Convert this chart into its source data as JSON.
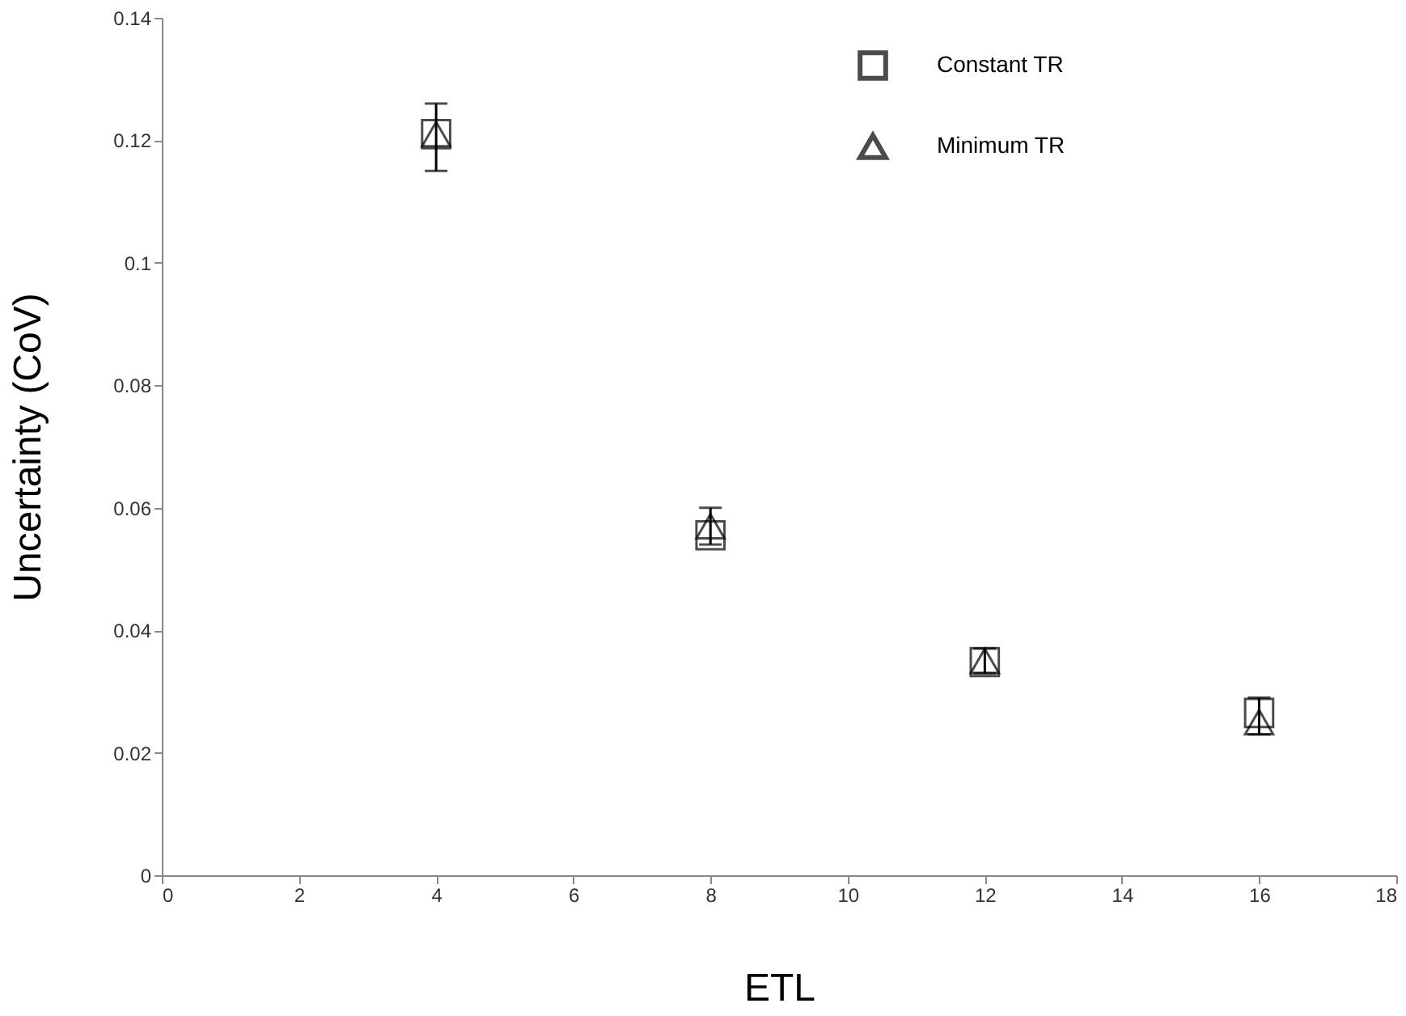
{
  "chart_data": {
    "type": "scatter",
    "xlabel": "ETL",
    "ylabel": "Uncertainty (CoV)",
    "x": [
      4,
      8,
      12,
      16
    ],
    "series": [
      {
        "name": "Constant TR",
        "color": "#000000",
        "marker": "square",
        "values": [
          0.121,
          0.0555,
          0.0348,
          0.0265
        ]
      },
      {
        "name": "Minimum TR",
        "color": "#000000",
        "marker": "triangle",
        "values": [
          0.121,
          0.057,
          0.035,
          0.025
        ],
        "errors": [
          [
            0.115,
            0.126
          ],
          [
            0.054,
            0.06
          ],
          [
            0.033,
            0.037
          ],
          [
            0.023,
            0.029
          ]
        ]
      }
    ],
    "xlim": [
      0,
      18
    ],
    "xticks": [
      0,
      2,
      4,
      6,
      8,
      10,
      12,
      14,
      16,
      18
    ],
    "ylim": [
      0,
      0.14
    ],
    "yticks": [
      0,
      0.02,
      0.04,
      0.06,
      0.08,
      0.1,
      0.12,
      0.14
    ],
    "grid": false,
    "legend": "top right"
  }
}
